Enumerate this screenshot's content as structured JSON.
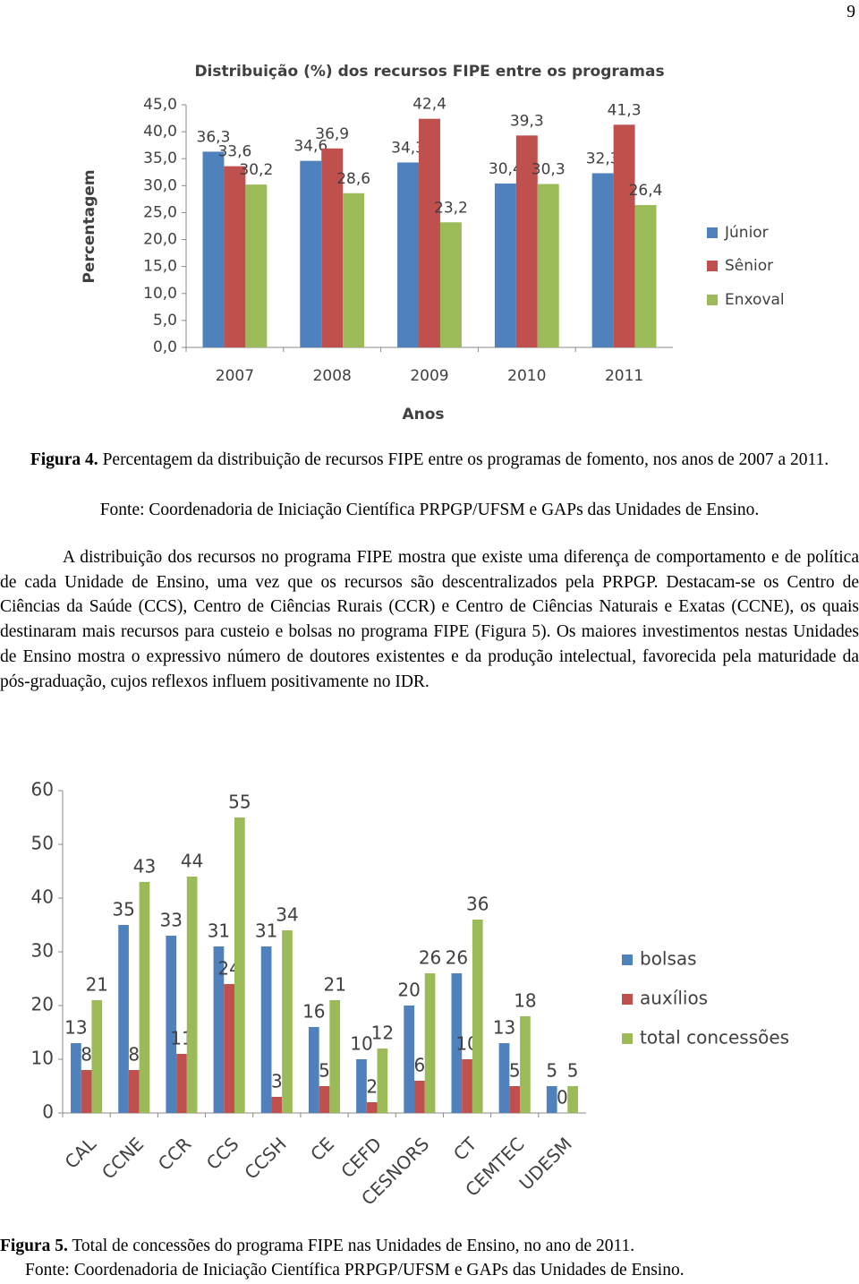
{
  "page_number": "9",
  "chart_data": [
    {
      "type": "bar",
      "title": "Distribuição (%) dos recursos FIPE entre os programas",
      "y_label": "Percentagem",
      "x_label": "Anos",
      "categories": [
        "2007",
        "2008",
        "2009",
        "2010",
        "2011"
      ],
      "series": [
        {
          "name": "Júnior",
          "color": "#4f81bd",
          "values": [
            36.3,
            34.6,
            34.3,
            30.4,
            32.3
          ],
          "value_labels": [
            "36,3",
            "34,6",
            "34,3",
            "30,4",
            "32,3"
          ]
        },
        {
          "name": "Sênior",
          "color": "#c0504d",
          "values": [
            33.6,
            36.9,
            42.4,
            39.3,
            41.3
          ],
          "value_labels": [
            "33,6",
            "36,9",
            "42,4",
            "39,3",
            "41,3"
          ]
        },
        {
          "name": "Enxoval",
          "color": "#9bbb59",
          "values": [
            30.2,
            28.6,
            23.2,
            30.3,
            26.4
          ],
          "value_labels": [
            "30,2",
            "28,6",
            "23,2",
            "30,3",
            "26,4"
          ]
        }
      ],
      "ylim": [
        0,
        45
      ],
      "yticks": [
        {
          "value": 0,
          "label": "0,0"
        },
        {
          "value": 5,
          "label": "5,0"
        },
        {
          "value": 10,
          "label": "10,0"
        },
        {
          "value": 15,
          "label": "15,0"
        },
        {
          "value": 20,
          "label": "20,0"
        },
        {
          "value": 25,
          "label": "25,0"
        },
        {
          "value": 30,
          "label": "30,0"
        },
        {
          "value": 35,
          "label": "35,0"
        },
        {
          "value": 40,
          "label": "40,0"
        },
        {
          "value": 45,
          "label": "45,0"
        }
      ],
      "grid": false,
      "legend": "right"
    },
    {
      "type": "bar",
      "categories": [
        "CAL",
        "CCNE",
        "CCR",
        "CCS",
        "CCSH",
        "CE",
        "CEFD",
        "CESNORS",
        "CT",
        "CEMTEC",
        "UDESM"
      ],
      "series": [
        {
          "name": "bolsas",
          "color": "#4f81bd",
          "values": [
            13,
            35,
            33,
            31,
            31,
            16,
            10,
            20,
            26,
            13,
            5
          ]
        },
        {
          "name": "auxílios",
          "color": "#c0504d",
          "values": [
            8,
            8,
            11,
            24,
            3,
            5,
            2,
            6,
            10,
            5,
            0
          ]
        },
        {
          "name": "total concessões",
          "color": "#9bbb59",
          "values": [
            21,
            43,
            44,
            55,
            34,
            21,
            12,
            26,
            36,
            18,
            5
          ]
        }
      ],
      "ylim": [
        0,
        60
      ],
      "yticks": [
        0,
        10,
        20,
        30,
        40,
        50,
        60
      ],
      "grid": false,
      "legend": "right"
    }
  ],
  "figure4": {
    "label": "Figura 4.",
    "caption": " Percentagem da distribuição de recursos FIPE entre os programas de fomento, nos anos de 2007 a 2011.",
    "source": "Fonte: Coordenadoria de Iniciação Científica PRPGP/UFSM e GAPs das Unidades de Ensino."
  },
  "paragraph": "A distribuição dos recursos no programa FIPE mostra que existe uma diferença de comportamento e de política de cada Unidade de Ensino, uma vez que os recursos são descentralizados pela PRPGP. Destacam-se os Centro de Ciências da Saúde (CCS), Centro de Ciências Rurais (CCR) e Centro de Ciências Naturais e Exatas (CCNE), os quais destinaram mais recursos para custeio e bolsas no programa FIPE (Figura 5). Os maiores investimentos nestas Unidades de Ensino mostra o expressivo número de doutores existentes e da produção intelectual, favorecida pela maturidade da pós-graduação, cujos reflexos influem positivamente no IDR.",
  "figure5": {
    "label": "Figura 5.",
    "caption": " Total de concessões do programa FIPE nas Unidades de Ensino, no ano de 2011.",
    "source": "Fonte: Coordenadoria de Iniciação Científica PRPGP/UFSM e GAPs das Unidades de Ensino."
  }
}
